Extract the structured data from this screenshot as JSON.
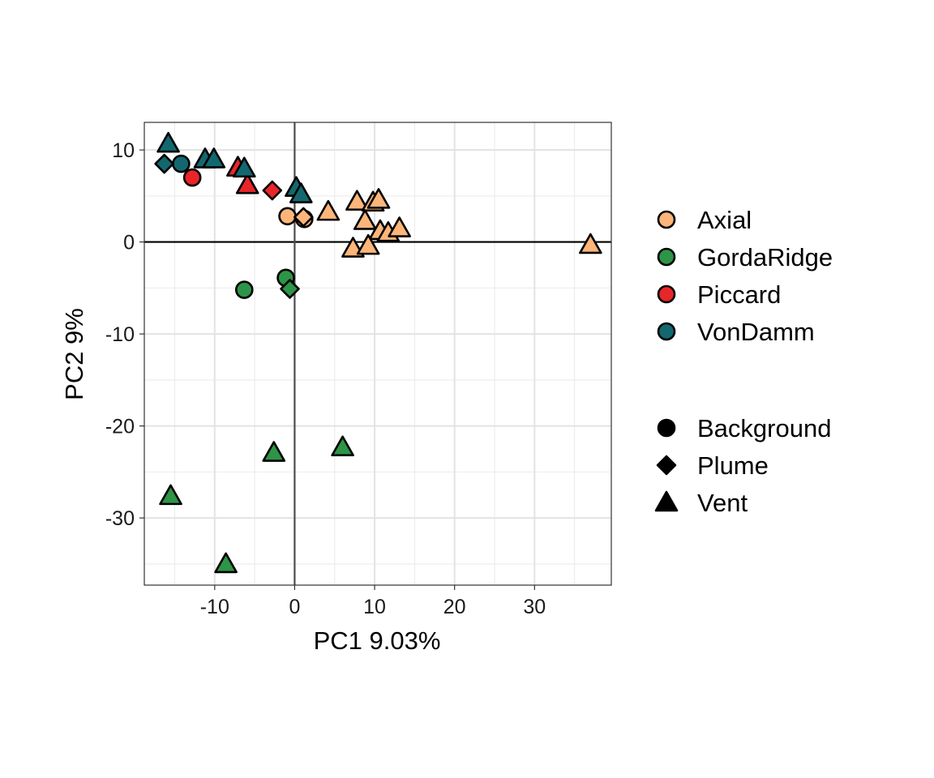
{
  "chart_data": {
    "type": "scatter",
    "xlabel": "PC1 9.03%",
    "ylabel": "PC2 9%",
    "xlim": [
      -18.8,
      39.6
    ],
    "ylim": [
      -37.3,
      13.0
    ],
    "x_ticks": [
      -10,
      0,
      10,
      20,
      30
    ],
    "y_ticks": [
      10,
      0,
      -10,
      -20,
      -30
    ],
    "x_tick_labels": [
      "-10",
      "0",
      "10",
      "20",
      "30"
    ],
    "y_tick_labels": [
      "10",
      "0",
      "-10",
      "-20",
      "-30"
    ],
    "grid": true,
    "reference_lines": {
      "x": 0,
      "y": 0
    },
    "legend_position": "right",
    "color_legend": [
      {
        "name": "Axial",
        "color": "#FDB57A"
      },
      {
        "name": "GordaRidge",
        "color": "#2E9447"
      },
      {
        "name": "Piccard",
        "color": "#E8262A"
      },
      {
        "name": "VonDamm",
        "color": "#136870"
      }
    ],
    "shape_legend": [
      {
        "name": "Background",
        "shape": "circle"
      },
      {
        "name": "Plume",
        "shape": "diamond"
      },
      {
        "name": "Vent",
        "shape": "triangle"
      }
    ],
    "points": [
      {
        "x": -0.9,
        "y": 2.8,
        "site": "Axial",
        "type": "Background"
      },
      {
        "x": 1.2,
        "y": 2.5,
        "site": "Axial",
        "type": "Background"
      },
      {
        "x": 1.1,
        "y": 2.7,
        "site": "Axial",
        "type": "Plume"
      },
      {
        "x": 4.2,
        "y": 3.3,
        "site": "Axial",
        "type": "Vent"
      },
      {
        "x": 7.8,
        "y": 4.4,
        "site": "Axial",
        "type": "Vent"
      },
      {
        "x": 9.8,
        "y": 4.3,
        "site": "Axial",
        "type": "Vent"
      },
      {
        "x": 10.5,
        "y": 4.6,
        "site": "Axial",
        "type": "Vent"
      },
      {
        "x": 8.8,
        "y": 2.3,
        "site": "Axial",
        "type": "Vent"
      },
      {
        "x": 10.7,
        "y": 1.2,
        "site": "Axial",
        "type": "Vent"
      },
      {
        "x": 11.7,
        "y": 1.0,
        "site": "Axial",
        "type": "Vent"
      },
      {
        "x": 13.1,
        "y": 1.5,
        "site": "Axial",
        "type": "Vent"
      },
      {
        "x": 7.3,
        "y": -0.7,
        "site": "Axial",
        "type": "Vent"
      },
      {
        "x": 9.2,
        "y": -0.4,
        "site": "Axial",
        "type": "Vent"
      },
      {
        "x": 37.0,
        "y": -0.3,
        "site": "Axial",
        "type": "Vent"
      },
      {
        "x": -6.3,
        "y": -5.2,
        "site": "GordaRidge",
        "type": "Background"
      },
      {
        "x": -1.1,
        "y": -3.9,
        "site": "GordaRidge",
        "type": "Background"
      },
      {
        "x": -0.6,
        "y": -5.1,
        "site": "GordaRidge",
        "type": "Plume"
      },
      {
        "x": 6.0,
        "y": -22.3,
        "site": "GordaRidge",
        "type": "Vent"
      },
      {
        "x": -2.6,
        "y": -22.9,
        "site": "GordaRidge",
        "type": "Vent"
      },
      {
        "x": -15.5,
        "y": -27.6,
        "site": "GordaRidge",
        "type": "Vent"
      },
      {
        "x": -8.6,
        "y": -35.0,
        "site": "GordaRidge",
        "type": "Vent"
      },
      {
        "x": -12.8,
        "y": 7.0,
        "site": "Piccard",
        "type": "Background"
      },
      {
        "x": -2.8,
        "y": 5.6,
        "site": "Piccard",
        "type": "Plume"
      },
      {
        "x": -7.1,
        "y": 8.1,
        "site": "Piccard",
        "type": "Vent"
      },
      {
        "x": -5.9,
        "y": 6.2,
        "site": "Piccard",
        "type": "Vent"
      },
      {
        "x": -14.2,
        "y": 8.5,
        "site": "VonDamm",
        "type": "Background"
      },
      {
        "x": -16.3,
        "y": 8.5,
        "site": "VonDamm",
        "type": "Plume"
      },
      {
        "x": -15.8,
        "y": 10.7,
        "site": "VonDamm",
        "type": "Vent"
      },
      {
        "x": -11.2,
        "y": 9.0,
        "site": "VonDamm",
        "type": "Vent"
      },
      {
        "x": -10.1,
        "y": 9.0,
        "site": "VonDamm",
        "type": "Vent"
      },
      {
        "x": -6.3,
        "y": 8.0,
        "site": "VonDamm",
        "type": "Vent"
      },
      {
        "x": 0.2,
        "y": 5.9,
        "site": "VonDamm",
        "type": "Vent"
      },
      {
        "x": 0.8,
        "y": 5.2,
        "site": "VonDamm",
        "type": "Vent"
      }
    ]
  }
}
